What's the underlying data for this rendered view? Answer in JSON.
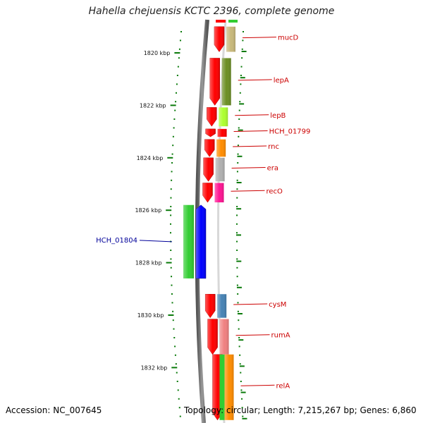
{
  "title": "Hahella chejuensis KCTC 2396, complete genome",
  "footer": {
    "accession": "Accession: NC_007645",
    "stats": "Topology: circular; Length: 7,215,267 bp; Genes: 6,860"
  },
  "chart_data": {
    "type": "genome_map",
    "axis_unit": "kbp",
    "ticks": [
      {
        "kbp": 1820,
        "label": "1820 kbp"
      },
      {
        "kbp": 1822,
        "label": "1822 kbp"
      },
      {
        "kbp": 1824,
        "label": "1824 kbp"
      },
      {
        "kbp": 1826,
        "label": "1826 kbp"
      },
      {
        "kbp": 1828,
        "label": "1828 kbp"
      },
      {
        "kbp": 1830,
        "label": "1830 kbp"
      },
      {
        "kbp": 1832,
        "label": "1832 kbp"
      }
    ],
    "genes": [
      {
        "name": "mucD",
        "label": "mucD",
        "strand": "forward",
        "start_kbp": 1819.0,
        "end_kbp": 1819.96,
        "color": "#c8b87a"
      },
      {
        "name": "lepA",
        "label": "lepA",
        "strand": "forward",
        "start_kbp": 1820.2,
        "end_kbp": 1822.0,
        "color": "#6b8e23"
      },
      {
        "name": "lepB",
        "label": "lepB",
        "strand": "forward",
        "start_kbp": 1822.08,
        "end_kbp": 1822.8,
        "color": "#adff2f"
      },
      {
        "name": "HCH_01799",
        "label": "HCH_01799",
        "strand": "forward",
        "start_kbp": 1822.9,
        "end_kbp": 1823.2,
        "color": "#ff0000"
      },
      {
        "name": "rnc",
        "label": "rnc",
        "strand": "forward",
        "start_kbp": 1823.3,
        "end_kbp": 1823.96,
        "color": "#ff8c00"
      },
      {
        "name": "era",
        "label": "era",
        "strand": "forward",
        "start_kbp": 1824.0,
        "end_kbp": 1824.9,
        "color": "#b0b0b0"
      },
      {
        "name": "recO",
        "label": "recO",
        "strand": "forward",
        "start_kbp": 1824.96,
        "end_kbp": 1825.7,
        "color": "#ff1493"
      },
      {
        "name": "HCH_01804",
        "label": "HCH_01804",
        "strand": "reverse",
        "start_kbp": 1825.8,
        "end_kbp": 1828.6,
        "color": "#32cd32",
        "pair_color": "#0000ff"
      },
      {
        "name": "cysM",
        "label": "cysM",
        "strand": "forward",
        "start_kbp": 1829.2,
        "end_kbp": 1830.1,
        "color": "#4682b4"
      },
      {
        "name": "rumA",
        "label": "rumA",
        "strand": "forward",
        "start_kbp": 1830.15,
        "end_kbp": 1831.5,
        "color": "#f08080"
      },
      {
        "name": "relA",
        "label": "relA",
        "strand": "forward",
        "start_kbp": 1831.5,
        "end_kbp": 1834.0,
        "color": "#ff8c00",
        "pair_color": "#32cd32"
      }
    ]
  }
}
